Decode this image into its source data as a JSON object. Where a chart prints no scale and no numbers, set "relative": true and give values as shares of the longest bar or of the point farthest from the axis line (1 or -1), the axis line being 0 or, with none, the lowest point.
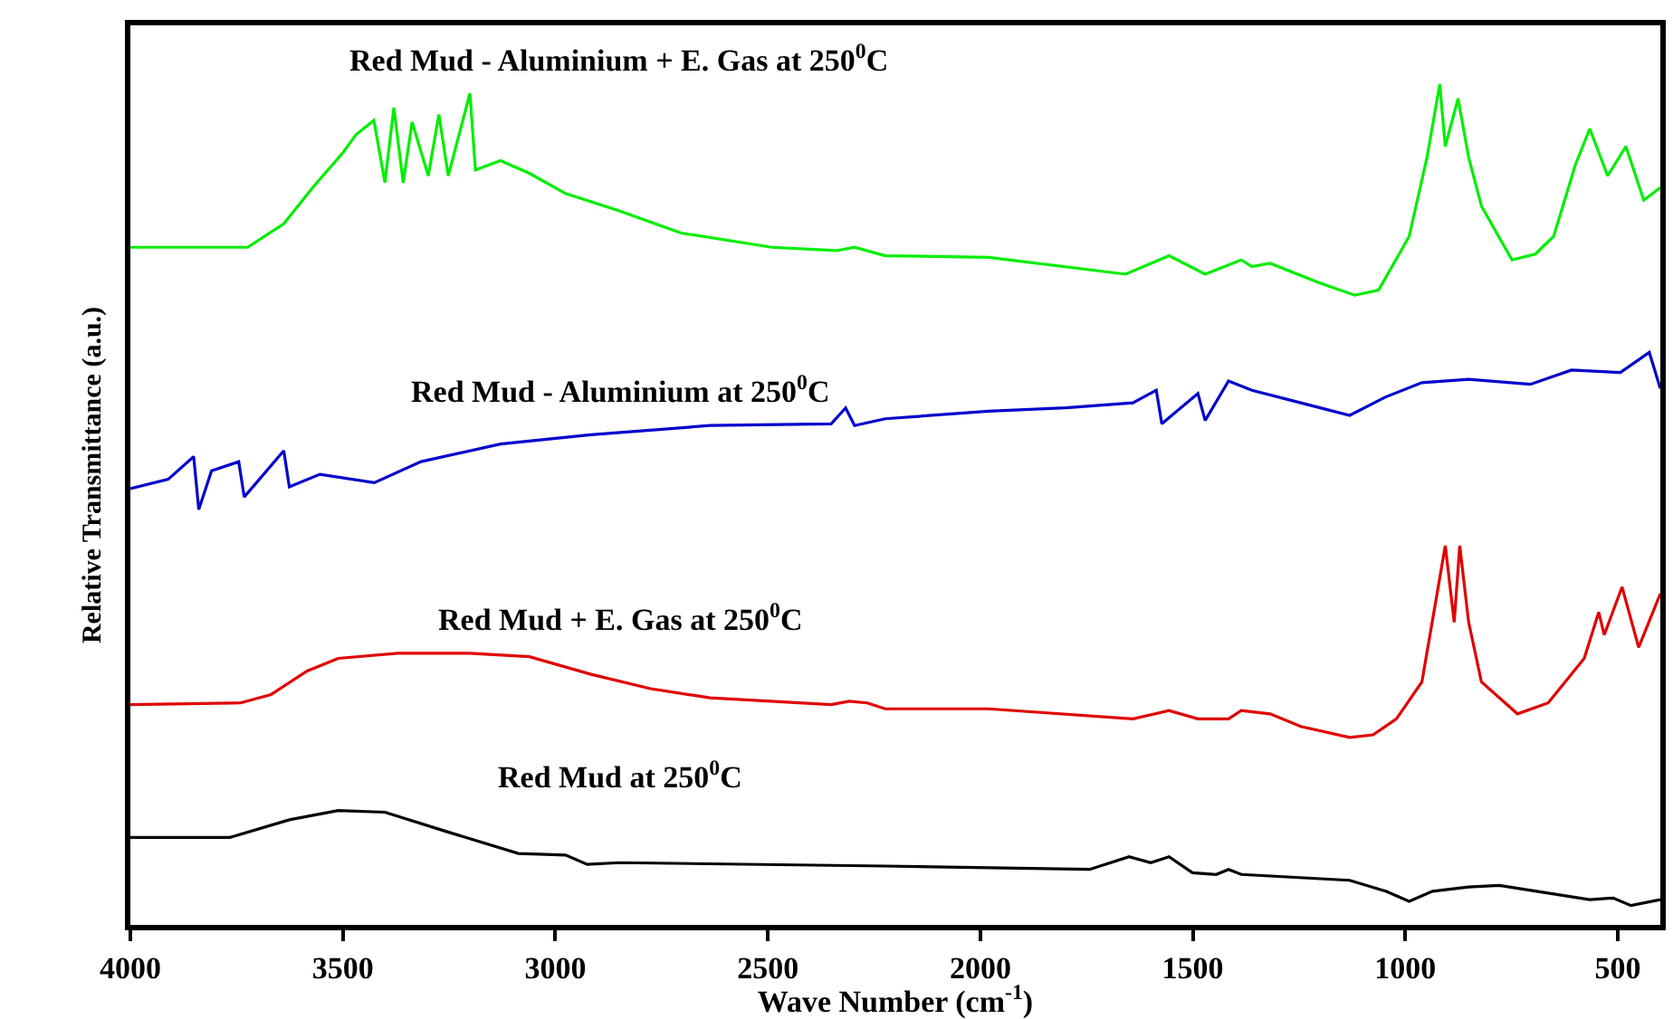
{
  "chart_data": {
    "type": "line",
    "relative": true,
    "xlabel": "Wave Number (cm$^{-1}$)",
    "ylabel": "Relative Transmittance (a.u.)",
    "xlim": [
      4000,
      400
    ],
    "xticks": [
      4000,
      3500,
      3000,
      2500,
      2000,
      1500,
      1000,
      500
    ],
    "tick_labels": "x",
    "grid": false,
    "legend": false,
    "marker": "none",
    "line_style": "solid",
    "series": [
      {
        "name": "Red Mud at 250$^{0}$C",
        "color": "#000000",
        "x": [
          4000,
          3766,
          3626,
          3511,
          3401,
          3256,
          3087,
          2976,
          2925,
          2848,
          2224,
          1743,
          1650,
          1599,
          1556,
          1501,
          1445,
          1416,
          1386,
          1131,
          1046,
          991,
          936,
          851,
          779,
          566,
          511,
          469,
          400
        ],
        "values": [
          0.104,
          0.104,
          0.125,
          0.136,
          0.134,
          0.111,
          0.085,
          0.083,
          0.072,
          0.074,
          0.07,
          0.066,
          0.081,
          0.074,
          0.081,
          0.062,
          0.06,
          0.066,
          0.06,
          0.053,
          0.04,
          0.028,
          0.04,
          0.045,
          0.047,
          0.03,
          0.032,
          0.023,
          0.03
        ]
      },
      {
        "name": "Red Mud + E. Gas at 250$^{0}$C",
        "color": "#e00000",
        "x": [
          4000,
          3741,
          3669,
          3584,
          3511,
          3371,
          3201,
          3061,
          2916,
          2776,
          2636,
          2351,
          2309,
          2266,
          2224,
          1981,
          1641,
          1556,
          1488,
          1416,
          1386,
          1318,
          1246,
          1131,
          1076,
          1021,
          961,
          927,
          906,
          885,
          872,
          851,
          821,
          736,
          664,
          579,
          545,
          532,
          490,
          451,
          400
        ],
        "values": [
          0.262,
          0.264,
          0.274,
          0.302,
          0.317,
          0.323,
          0.323,
          0.319,
          0.298,
          0.281,
          0.27,
          0.262,
          0.266,
          0.264,
          0.257,
          0.257,
          0.245,
          0.255,
          0.245,
          0.245,
          0.255,
          0.251,
          0.236,
          0.223,
          0.226,
          0.245,
          0.289,
          0.389,
          0.451,
          0.36,
          0.451,
          0.36,
          0.289,
          0.251,
          0.264,
          0.317,
          0.372,
          0.345,
          0.402,
          0.33,
          0.394
        ]
      },
      {
        "name": "Red Mud - Aluminium at 250$^{0}$C",
        "color": "#0000cc",
        "x": [
          4000,
          3911,
          3851,
          3839,
          3809,
          3745,
          3732,
          3639,
          3626,
          3554,
          3426,
          3316,
          3129,
          2916,
          2636,
          2351,
          2317,
          2296,
          2224,
          1981,
          1799,
          1641,
          1586,
          1573,
          1488,
          1471,
          1416,
          1361,
          1246,
          1131,
          1046,
          961,
          851,
          706,
          609,
          494,
          426,
          400
        ],
        "values": [
          0.519,
          0.53,
          0.557,
          0.494,
          0.54,
          0.551,
          0.509,
          0.564,
          0.521,
          0.536,
          0.526,
          0.551,
          0.572,
          0.583,
          0.594,
          0.596,
          0.615,
          0.594,
          0.602,
          0.611,
          0.615,
          0.621,
          0.636,
          0.596,
          0.632,
          0.6,
          0.647,
          0.636,
          0.621,
          0.606,
          0.628,
          0.645,
          0.649,
          0.643,
          0.66,
          0.657,
          0.681,
          0.638
        ]
      },
      {
        "name": "Red Mud - Aluminium + E. Gas at 250$^{0}$C",
        "color": "#00ee00",
        "x": [
          4000,
          3724,
          3639,
          3571,
          3499,
          3469,
          3427,
          3401,
          3380,
          3358,
          3337,
          3299,
          3274,
          3252,
          3201,
          3188,
          3129,
          3061,
          2976,
          2848,
          2704,
          2491,
          2338,
          2296,
          2224,
          1981,
          1658,
          1556,
          1471,
          1386,
          1361,
          1318,
          1204,
          1119,
          1063,
          991,
          949,
          919,
          906,
          876,
          851,
          821,
          749,
          694,
          651,
          600,
          566,
          524,
          481,
          439,
          400
        ],
        "values": [
          0.806,
          0.806,
          0.834,
          0.877,
          0.919,
          0.94,
          0.957,
          0.883,
          0.972,
          0.883,
          0.955,
          0.891,
          0.964,
          0.891,
          0.989,
          0.898,
          0.909,
          0.894,
          0.87,
          0.849,
          0.823,
          0.806,
          0.802,
          0.806,
          0.796,
          0.794,
          0.774,
          0.796,
          0.774,
          0.791,
          0.783,
          0.787,
          0.764,
          0.749,
          0.755,
          0.819,
          0.913,
          1.0,
          0.926,
          0.983,
          0.913,
          0.855,
          0.791,
          0.798,
          0.819,
          0.904,
          0.947,
          0.891,
          0.926,
          0.862,
          0.877
        ]
      }
    ]
  }
}
